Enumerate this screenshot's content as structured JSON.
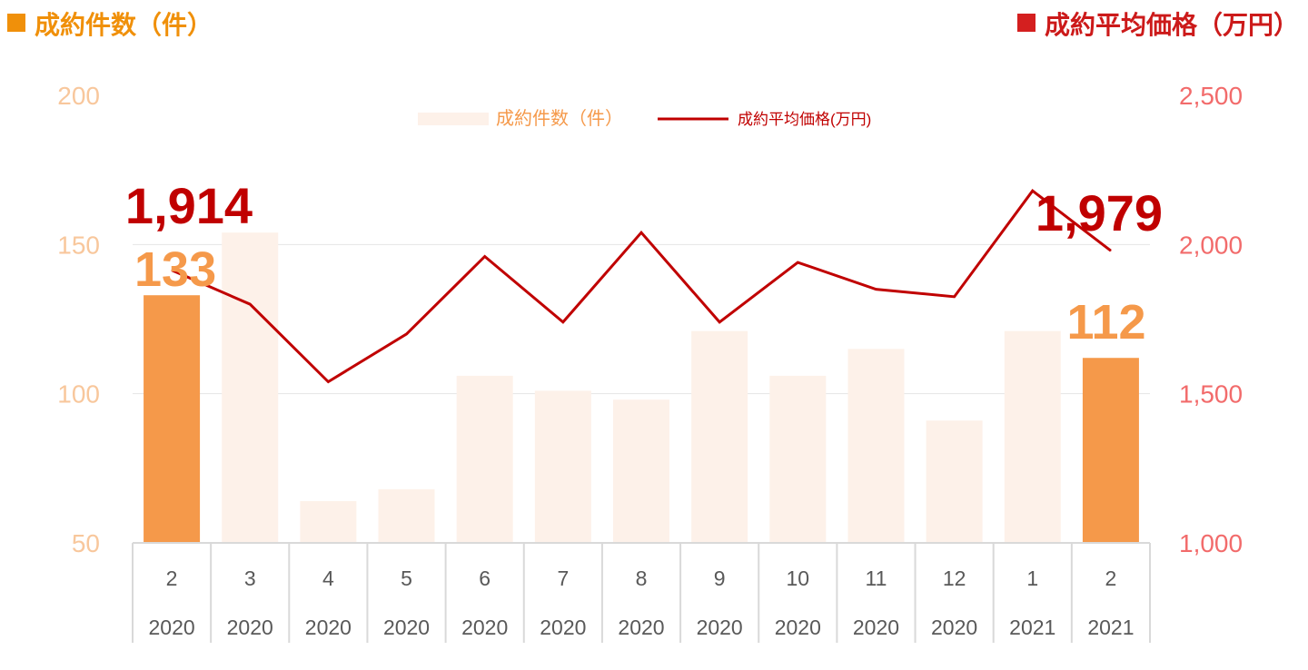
{
  "headers": {
    "left": "成約件数（件）",
    "right": "成約平均価格（万円）"
  },
  "colors": {
    "bar_highlight": "#f5994a",
    "bar_faded": "#fdf1e9",
    "line": "#c00000",
    "left_axis_text": "#f8c79c",
    "right_axis_text": "#f26b6b",
    "category_text": "#595959",
    "header_left": "#f0900a",
    "header_right": "#cc1a1a",
    "label_bar": "#f5994a",
    "label_line": "#c00000"
  },
  "chart_data": {
    "type": "bar",
    "categories": [
      "2",
      "3",
      "4",
      "5",
      "6",
      "7",
      "8",
      "9",
      "10",
      "11",
      "12",
      "1",
      "2"
    ],
    "years": [
      "2020",
      "2020",
      "2020",
      "2020",
      "2020",
      "2020",
      "2020",
      "2020",
      "2020",
      "2020",
      "2020",
      "2021",
      "2021"
    ],
    "legend": {
      "bar": "成約件数（件）",
      "line": "成約平均価格(万円)"
    },
    "series": [
      {
        "name": "成約件数（件）",
        "type": "bar",
        "axis": "left",
        "values": [
          133,
          154,
          64,
          68,
          106,
          101,
          98,
          121,
          106,
          115,
          91,
          121,
          112
        ],
        "highlight": [
          true,
          false,
          false,
          false,
          false,
          false,
          false,
          false,
          false,
          false,
          false,
          false,
          true
        ]
      },
      {
        "name": "成約平均価格(万円)",
        "type": "line",
        "axis": "right",
        "values": [
          1914,
          1800,
          1540,
          1700,
          1960,
          1740,
          2040,
          1740,
          1940,
          1850,
          1825,
          2180,
          1979
        ]
      }
    ],
    "data_labels": [
      {
        "series": 0,
        "index": 0,
        "text": "133"
      },
      {
        "series": 0,
        "index": 12,
        "text": "112"
      },
      {
        "series": 1,
        "index": 0,
        "text": "1,914"
      },
      {
        "series": 1,
        "index": 12,
        "text": "1,979"
      }
    ],
    "yaxis_left": {
      "ylim": [
        50,
        200
      ],
      "ticks": [
        "50",
        "100",
        "150",
        "200"
      ]
    },
    "yaxis_right": {
      "ylim": [
        1000,
        2500
      ],
      "ticks": [
        "1,000",
        "1,500",
        "2,000",
        "2,500"
      ]
    },
    "grid": true,
    "legend_position": "top-center"
  }
}
